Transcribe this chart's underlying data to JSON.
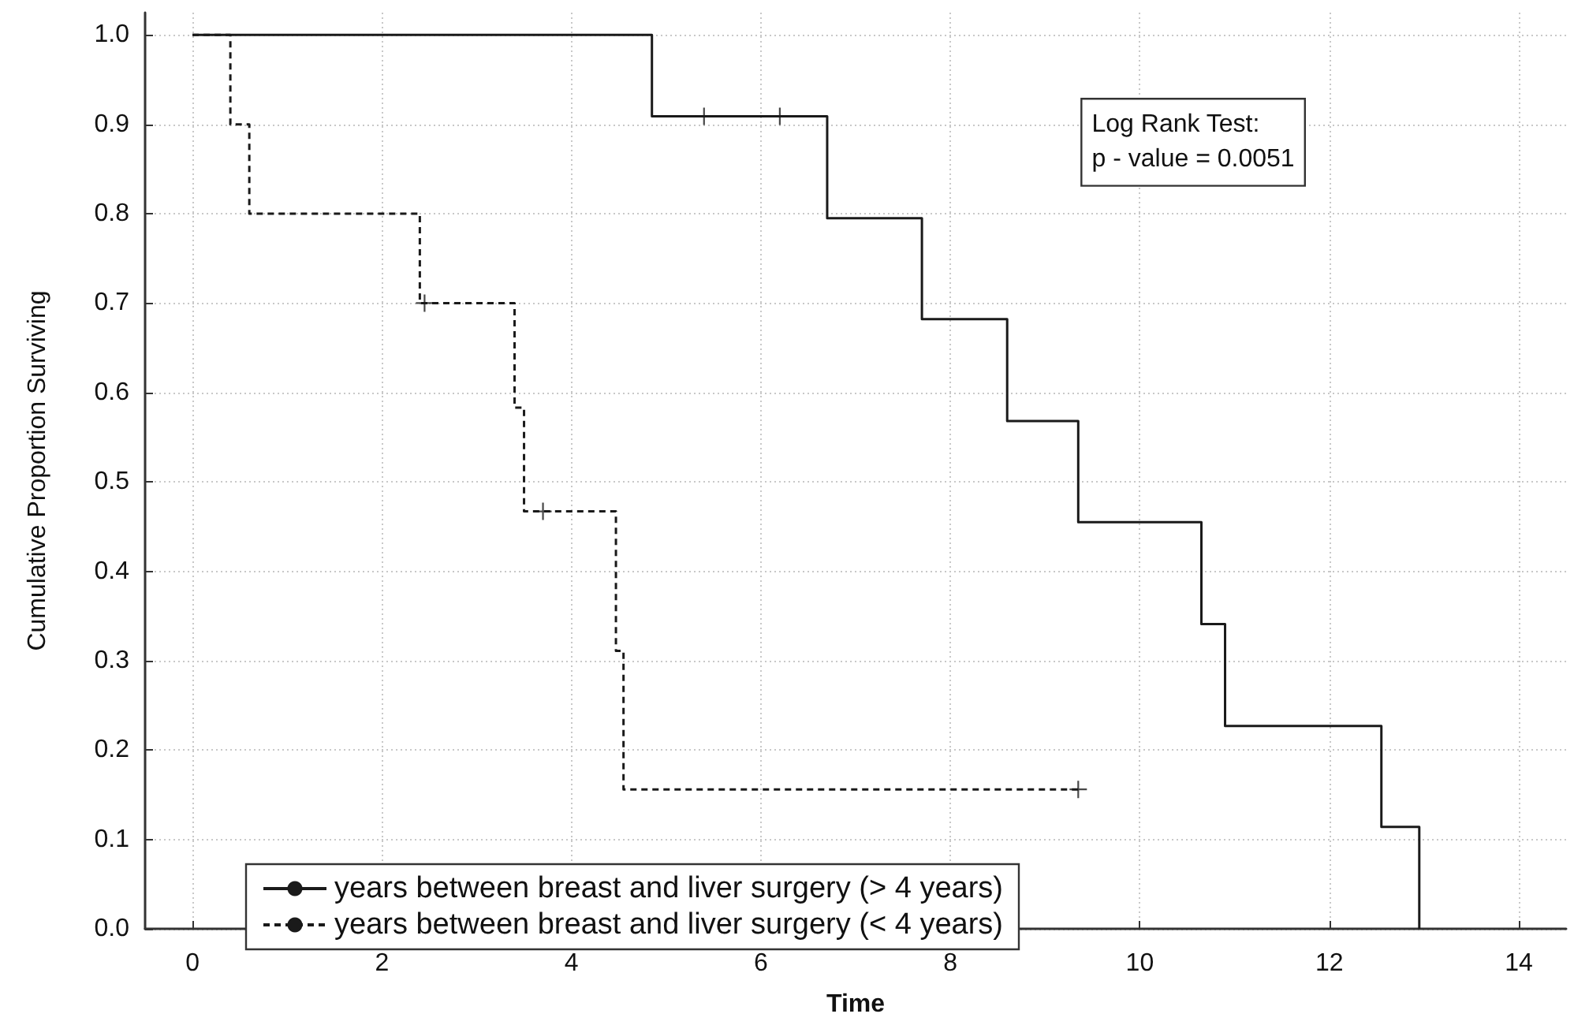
{
  "chart_data": {
    "type": "step",
    "xlabel": "Time",
    "ylabel": "Cumulative Proportion Surviving",
    "annotations": [
      "Log Rank Test:",
      "p - value = 0.0051"
    ],
    "series": [
      {
        "name": "years between breast and liver surgery (> 4 years)",
        "color": "#1a1a1a",
        "line_style": "solid",
        "marker": "none",
        "x": [
          0,
          4.85,
          6.7,
          7.7,
          8.6,
          9.35,
          10.65,
          10.9,
          12.55,
          12.95
        ],
        "values": [
          1,
          0.909,
          0.795,
          0.682,
          0.568,
          0.455,
          0.341,
          0.227,
          0.114,
          0
        ]
      },
      {
        "name": "years between breast and liver surgery (< 4 years)",
        "color": "#1a1a1a",
        "line_style": "dashed",
        "marker": "none",
        "x": [
          0,
          0.4,
          0.6,
          2.4,
          3.4,
          3.5,
          4.47,
          4.55,
          9.35
        ],
        "values": [
          1,
          0.9,
          0.8,
          0.7,
          0.583,
          0.467,
          0.311,
          0.156,
          0.156
        ]
      },
      {
        "type": "scatter",
        "color": "#1a1a1a",
        "marker": "cross",
        "x": [
          5.4,
          6.2
        ],
        "values": [
          0.909,
          0.909
        ]
      },
      {
        "type": "scatter",
        "color": "#1a1a1a",
        "marker": "cross",
        "x": [
          2.45,
          3.7,
          9.35
        ],
        "values": [
          0.7,
          0.467,
          0.156
        ]
      }
    ],
    "xlim": [
      -0.5,
      14.5
    ],
    "xticks": [
      0,
      2,
      4,
      6,
      8,
      10,
      12,
      14
    ],
    "ylim": [
      0,
      1.025
    ],
    "yticks": [
      {
        "value": 0,
        "label": "0.0"
      },
      {
        "value": 0.1,
        "label": "0.1"
      },
      {
        "value": 0.2,
        "label": "0.2"
      },
      {
        "value": 0.3,
        "label": "0.3"
      },
      {
        "value": 0.4,
        "label": "0.4"
      },
      {
        "value": 0.5,
        "label": "0.5"
      },
      {
        "value": 0.6,
        "label": "0.6"
      },
      {
        "value": 0.7,
        "label": "0.7"
      },
      {
        "value": 0.8,
        "label": "0.8"
      },
      {
        "value": 0.9,
        "label": "0.9"
      },
      {
        "value": 1,
        "label": "1.0"
      }
    ],
    "grid": true,
    "legend": "bottom left"
  }
}
